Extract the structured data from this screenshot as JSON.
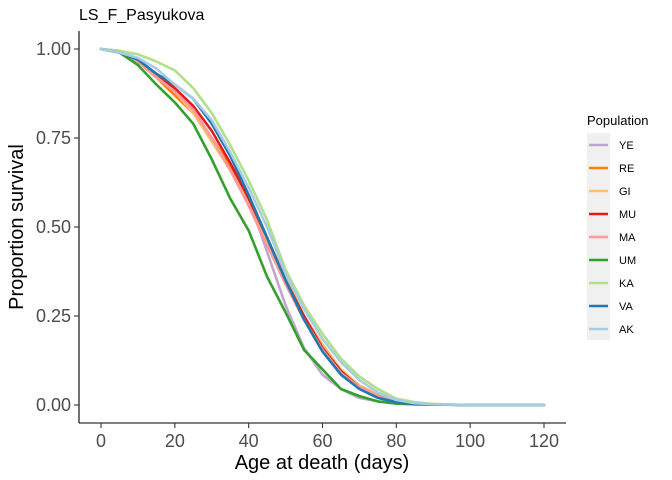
{
  "chart_data": {
    "type": "line",
    "title": "LS_F_Pasyukova",
    "xlabel": "Age at death (days)",
    "ylabel": "Proportion survival",
    "xlim": [
      0,
      120
    ],
    "ylim": [
      0,
      1
    ],
    "x_ticks": [
      0,
      20,
      40,
      60,
      80,
      100,
      120
    ],
    "y_ticks": [
      0,
      0.25,
      0.5,
      0.75,
      1
    ],
    "x_tick_labels": [
      "0",
      "20",
      "40",
      "60",
      "80",
      "100",
      "120"
    ],
    "y_tick_labels": [
      "0.00",
      "0.25",
      "0.50",
      "0.75",
      "1.00"
    ],
    "grid": false,
    "legend": {
      "title": "Population",
      "position": "right"
    },
    "series": [
      {
        "name": "YE",
        "color": "#c2a5cf",
        "x": [
          0,
          5,
          10,
          15,
          20,
          25,
          30,
          35,
          40,
          45,
          50,
          55,
          60,
          65,
          70,
          75,
          80,
          85,
          90,
          100,
          110,
          120
        ],
        "y": [
          1.0,
          0.995,
          0.97,
          0.93,
          0.9,
          0.86,
          0.8,
          0.71,
          0.58,
          0.43,
          0.28,
          0.16,
          0.085,
          0.045,
          0.02,
          0.01,
          0.004,
          0.002,
          0.001,
          0.0,
          0.0,
          0.0
        ]
      },
      {
        "name": "RE",
        "color": "#ff7f00",
        "x": [
          0,
          5,
          10,
          15,
          20,
          25,
          30,
          35,
          40,
          45,
          50,
          55,
          60,
          65,
          70,
          75,
          80,
          85,
          90,
          100,
          110,
          120
        ],
        "y": [
          1.0,
          0.99,
          0.965,
          0.92,
          0.87,
          0.82,
          0.75,
          0.67,
          0.56,
          0.45,
          0.34,
          0.24,
          0.16,
          0.09,
          0.05,
          0.025,
          0.01,
          0.004,
          0.002,
          0.0,
          0.0,
          0.0
        ]
      },
      {
        "name": "GI",
        "color": "#fdbf6f",
        "x": [
          0,
          5,
          10,
          15,
          20,
          25,
          30,
          35,
          40,
          45,
          50,
          55,
          60,
          65,
          70,
          75,
          80,
          85,
          90,
          100,
          110,
          120
        ],
        "y": [
          1.0,
          0.99,
          0.97,
          0.93,
          0.88,
          0.82,
          0.74,
          0.66,
          0.57,
          0.47,
          0.36,
          0.25,
          0.17,
          0.1,
          0.055,
          0.03,
          0.012,
          0.005,
          0.002,
          0.0,
          0.0,
          0.0
        ]
      },
      {
        "name": "MU",
        "color": "#e31a1c",
        "x": [
          0,
          5,
          10,
          15,
          20,
          25,
          30,
          35,
          40,
          45,
          50,
          55,
          60,
          65,
          70,
          75,
          80,
          85,
          90,
          100,
          110,
          120
        ],
        "y": [
          1.0,
          0.99,
          0.97,
          0.93,
          0.89,
          0.84,
          0.77,
          0.68,
          0.58,
          0.47,
          0.35,
          0.25,
          0.16,
          0.095,
          0.05,
          0.025,
          0.01,
          0.004,
          0.002,
          0.0,
          0.0,
          0.0
        ]
      },
      {
        "name": "MA",
        "color": "#fb9a99",
        "x": [
          0,
          5,
          10,
          15,
          20,
          25,
          30,
          35,
          40,
          45,
          50,
          55,
          60,
          65,
          70,
          75,
          80,
          85,
          90,
          100,
          110,
          120
        ],
        "y": [
          1.0,
          0.99,
          0.965,
          0.92,
          0.88,
          0.83,
          0.75,
          0.66,
          0.56,
          0.45,
          0.34,
          0.24,
          0.155,
          0.09,
          0.05,
          0.025,
          0.01,
          0.004,
          0.002,
          0.0,
          0.0,
          0.0
        ]
      },
      {
        "name": "UM",
        "color": "#33a02c",
        "x": [
          0,
          5,
          10,
          15,
          20,
          25,
          30,
          35,
          40,
          45,
          50,
          55,
          60,
          65,
          70,
          75,
          80,
          85,
          90,
          100,
          110,
          120
        ],
        "y": [
          1.0,
          0.99,
          0.955,
          0.9,
          0.85,
          0.79,
          0.69,
          0.58,
          0.49,
          0.36,
          0.26,
          0.155,
          0.1,
          0.045,
          0.025,
          0.01,
          0.004,
          0.002,
          0.001,
          0.0,
          0.0,
          0.0
        ]
      },
      {
        "name": "KA",
        "color": "#b2df8a",
        "x": [
          0,
          5,
          10,
          15,
          20,
          25,
          30,
          35,
          40,
          45,
          50,
          55,
          60,
          65,
          70,
          75,
          80,
          85,
          90,
          100,
          110,
          120
        ],
        "y": [
          1.0,
          0.995,
          0.985,
          0.965,
          0.94,
          0.89,
          0.82,
          0.73,
          0.63,
          0.52,
          0.38,
          0.28,
          0.2,
          0.13,
          0.08,
          0.045,
          0.018,
          0.008,
          0.003,
          0.0,
          0.0,
          0.0
        ]
      },
      {
        "name": "VA",
        "color": "#1f78b4",
        "x": [
          0,
          5,
          10,
          15,
          20,
          25,
          30,
          35,
          40,
          45,
          50,
          55,
          60,
          65,
          70,
          75,
          80,
          85,
          90,
          100,
          110,
          120
        ],
        "y": [
          1.0,
          0.99,
          0.97,
          0.93,
          0.9,
          0.86,
          0.79,
          0.7,
          0.59,
          0.47,
          0.35,
          0.24,
          0.15,
          0.085,
          0.045,
          0.02,
          0.008,
          0.003,
          0.001,
          0.0,
          0.0,
          0.0
        ]
      },
      {
        "name": "AK",
        "color": "#a6cee3",
        "x": [
          0,
          5,
          10,
          15,
          20,
          25,
          30,
          35,
          40,
          45,
          50,
          55,
          60,
          65,
          70,
          75,
          80,
          85,
          90,
          100,
          110,
          120
        ],
        "y": [
          1.0,
          0.99,
          0.975,
          0.945,
          0.9,
          0.86,
          0.8,
          0.71,
          0.61,
          0.5,
          0.37,
          0.27,
          0.185,
          0.12,
          0.07,
          0.035,
          0.014,
          0.005,
          0.002,
          0.0,
          0.0,
          0.0
        ]
      }
    ]
  }
}
